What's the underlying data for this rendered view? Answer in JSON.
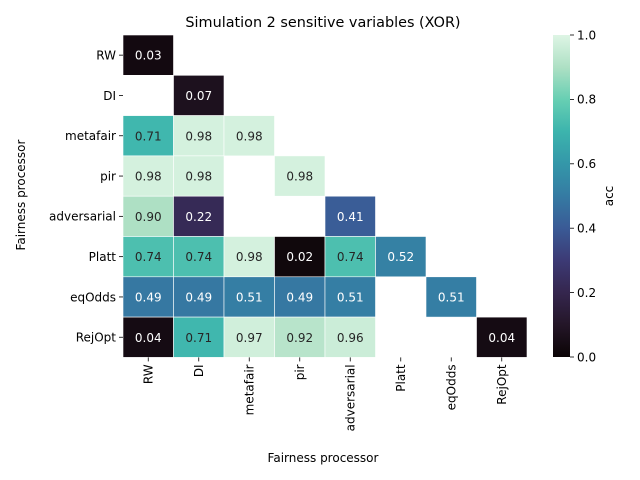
{
  "chart_data": {
    "type": "heatmap",
    "title": "Simulation 2 sensitive variables (XOR)",
    "xlabel": "Fairness processor",
    "ylabel": "Fairness processor",
    "x_categories": [
      "RW",
      "DI",
      "metafair",
      "pir",
      "adversarial",
      "Platt",
      "eqOdds",
      "RejOpt"
    ],
    "y_categories": [
      "RW",
      "DI",
      "metafair",
      "pir",
      "adversarial",
      "Platt",
      "eqOdds",
      "RejOpt"
    ],
    "values": [
      [
        0.03,
        null,
        null,
        null,
        null,
        null,
        null,
        null
      ],
      [
        null,
        0.07,
        null,
        null,
        null,
        null,
        null,
        null
      ],
      [
        0.71,
        0.98,
        0.98,
        null,
        null,
        null,
        null,
        null
      ],
      [
        0.98,
        0.98,
        null,
        0.98,
        null,
        null,
        null,
        null
      ],
      [
        0.9,
        0.22,
        null,
        null,
        0.41,
        null,
        null,
        null
      ],
      [
        0.74,
        0.74,
        0.98,
        0.02,
        0.74,
        0.52,
        null,
        null
      ],
      [
        0.49,
        0.49,
        0.51,
        0.49,
        0.51,
        null,
        0.51,
        null
      ],
      [
        0.04,
        0.71,
        0.97,
        0.92,
        0.96,
        null,
        null,
        0.04
      ]
    ],
    "colorbar": {
      "label": "acc",
      "range": [
        0,
        1
      ],
      "ticks": [
        "0.0",
        "0.2",
        "0.4",
        "0.6",
        "0.8",
        "1.0"
      ],
      "colormap": "mako"
    },
    "grid": false,
    "legend": "colorbar-right"
  }
}
